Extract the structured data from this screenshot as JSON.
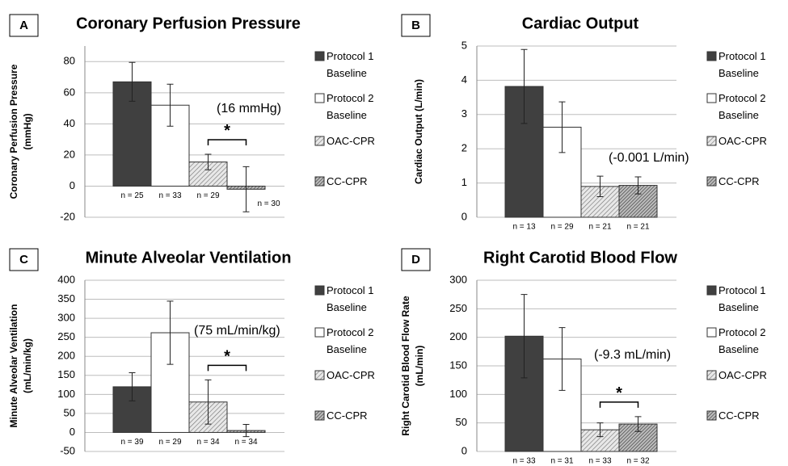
{
  "chart_data": [
    {
      "type": "bar",
      "panel": "A",
      "title": "Coronary Perfusion Pressure",
      "ylabel": [
        "Coronary Perfusion Pressure",
        "(mmHg)"
      ],
      "legend": [
        "Protocol 1 Baseline",
        "Protocol 2 Baseline",
        "OAC-CPR",
        "CC-CPR"
      ],
      "colors": [
        "#404040",
        "#ffffff",
        "hatch",
        "hatch-dense"
      ],
      "categories": [
        "n = 25",
        "n = 33",
        "n = 29",
        "n = 30"
      ],
      "values": [
        67,
        52,
        15.5,
        -2
      ],
      "errors": [
        12.5,
        13.5,
        5,
        14.5
      ],
      "annotation": "(16 mmHg)",
      "significance": {
        "label": "*",
        "between": [
          2,
          3
        ]
      },
      "ylim": [
        -20,
        90
      ],
      "yticks": [
        -20,
        0,
        20,
        40,
        60,
        80
      ],
      "grid": true
    },
    {
      "type": "bar",
      "panel": "B",
      "title": "Cardiac Output",
      "ylabel": [
        "Cardiac Output (L/min)"
      ],
      "legend": [
        "Protocol 1 Baseline",
        "Protocol 2 Baseline",
        "OAC-CPR",
        "CC-CPR"
      ],
      "colors": [
        "#404040",
        "#ffffff",
        "hatch",
        "hatch-dense"
      ],
      "categories": [
        "n = 13",
        "n = 29",
        "n = 21",
        "n = 21"
      ],
      "values": [
        3.82,
        2.63,
        0.9,
        0.93
      ],
      "errors": [
        1.08,
        0.74,
        0.3,
        0.25
      ],
      "annotation": "(-0.001 L/min)",
      "ylim": [
        0,
        5
      ],
      "yticks": [
        0,
        1,
        2,
        3,
        4,
        5
      ],
      "grid": true
    },
    {
      "type": "bar",
      "panel": "C",
      "title": "Minute Alveolar Ventilation",
      "ylabel": [
        "Minute Alveolar Ventilation",
        "(mL/min/kg)"
      ],
      "legend": [
        "Protocol 1 Baseline",
        "Protocol 2 Baseline",
        "OAC-CPR",
        "CC-CPR"
      ],
      "colors": [
        "#404040",
        "#ffffff",
        "hatch",
        "hatch-dense"
      ],
      "categories": [
        "n = 39",
        "n = 29",
        "n = 34",
        "n = 34"
      ],
      "values": [
        120,
        262,
        80,
        5
      ],
      "errors": [
        37,
        83,
        58,
        16
      ],
      "annotation": "(75 mL/min/kg)",
      "significance": {
        "label": "*",
        "between": [
          2,
          3
        ]
      },
      "ylim": [
        -50,
        400
      ],
      "yticks": [
        -50,
        0,
        50,
        100,
        150,
        200,
        250,
        300,
        350,
        400
      ],
      "grid": true
    },
    {
      "type": "bar",
      "panel": "D",
      "title": "Right Carotid Blood Flow",
      "ylabel": [
        "Right Carotid Blood Flow Rate",
        "(mL/min)"
      ],
      "legend": [
        "Protocol 1 Baseline",
        "Protocol 2 Baseline",
        "OAC-CPR",
        "CC-CPR"
      ],
      "colors": [
        "#404040",
        "#ffffff",
        "hatch",
        "hatch-dense"
      ],
      "categories": [
        "n = 33",
        "n = 31",
        "n = 33",
        "n = 32"
      ],
      "values": [
        202,
        162,
        38,
        48
      ],
      "errors": [
        73,
        55,
        12,
        13
      ],
      "annotation": "(-9.3 mL/min)",
      "significance": {
        "label": "*",
        "between": [
          2,
          3
        ]
      },
      "ylim": [
        0,
        300
      ],
      "yticks": [
        0,
        50,
        100,
        150,
        200,
        250,
        300
      ],
      "grid": true
    }
  ]
}
